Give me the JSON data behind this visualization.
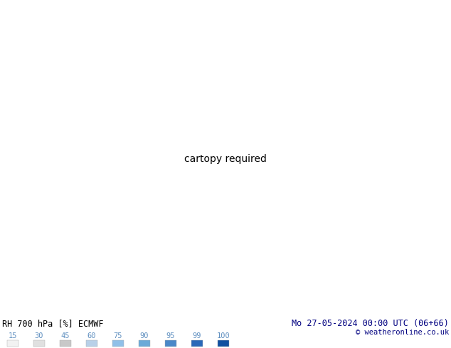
{
  "title_left": "RH 700 hPa [%] ECMWF",
  "title_right": "Mo 27-05-2024 00:00 UTC (06+66)",
  "credit": "© weatheronline.co.uk",
  "colorbar_labels": [
    "15",
    "30",
    "45",
    "60",
    "75",
    "90",
    "95",
    "99",
    "100"
  ],
  "rh_levels": [
    0,
    15,
    30,
    45,
    60,
    75,
    90,
    95,
    99,
    100
  ],
  "fill_colors": [
    "#f2f2f2",
    "#e0e0e0",
    "#c8c8c8",
    "#b8d0e8",
    "#90c0e8",
    "#6aaad8",
    "#4a88c8",
    "#2a68b8",
    "#1050a0"
  ],
  "green_color": "#00bb00",
  "light_green_color": "#90ee90",
  "contour_color": "#888888",
  "border_color": "#00aa00",
  "text_color_left": "#000000",
  "text_color_right": "#000080",
  "cb_text_color": "#6090c0",
  "background_color": "#ffffff",
  "extent": [
    -170,
    -30,
    15,
    85
  ],
  "fig_width": 6.34,
  "fig_height": 4.9,
  "dpi": 100,
  "contour_levels": [
    10,
    20,
    30,
    40,
    50,
    60,
    70,
    80,
    90,
    95
  ],
  "label_levels": [
    30,
    60,
    70,
    80,
    90,
    95
  ],
  "green_contour_level": 75,
  "seed": 42
}
